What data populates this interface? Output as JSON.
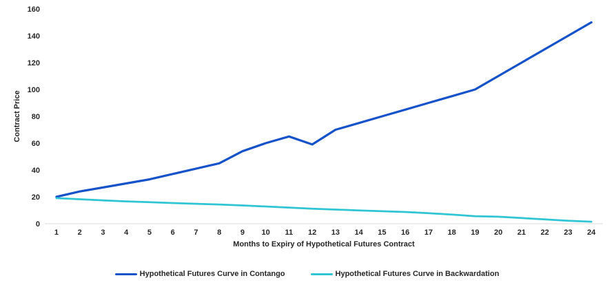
{
  "chart_data": {
    "type": "line",
    "title": "",
    "xlabel": "Months to Expiry of Hypothetical Futures Contract",
    "ylabel": "Contract Price",
    "categories": [
      "1",
      "2",
      "3",
      "4",
      "5",
      "6",
      "7",
      "8",
      "9",
      "10",
      "11",
      "12",
      "13",
      "14",
      "15",
      "16",
      "17",
      "18",
      "19",
      "20",
      "21",
      "22",
      "23",
      "24"
    ],
    "series": [
      {
        "name": "Hypothetical Futures Curve in Contango",
        "color": "#1753c8",
        "values": [
          20,
          24,
          27,
          30,
          33,
          37,
          41,
          45,
          54,
          60,
          65,
          59,
          70,
          75,
          80,
          85,
          90,
          95,
          100,
          110,
          120,
          130,
          140,
          150
        ]
      },
      {
        "name": "Hypothetical Futures Curve in Backwardation",
        "color": "#2fc5d3",
        "values": [
          19,
          18.2,
          17.4,
          16.6,
          16,
          15.4,
          14.8,
          14.3,
          13.6,
          12.8,
          12,
          11.2,
          10.5,
          9.9,
          9.3,
          8.7,
          7.8,
          6.8,
          5.6,
          5.2,
          4.2,
          3.2,
          2.2,
          1.5
        ]
      }
    ],
    "ylim": [
      0,
      160
    ],
    "yticks": [
      0,
      20,
      40,
      60,
      80,
      100,
      120,
      140,
      160
    ],
    "grid": false,
    "legend_position": "bottom",
    "axis_line_color": "#d9d9d9",
    "text_color": "#262626"
  }
}
